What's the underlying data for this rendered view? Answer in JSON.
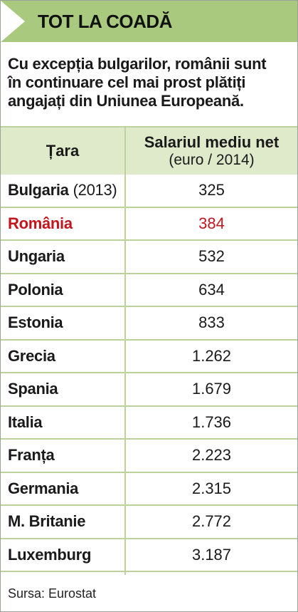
{
  "header": {
    "title": "TOT LA COADĂ"
  },
  "intro": {
    "lines": [
      "Cu excepția bulgarilor, românii sunt",
      "în continuare cel mai prost plătiți",
      "angajați din Uniunea Europeană."
    ]
  },
  "table": {
    "col1_header": "Țara",
    "col2_header_line1": "Salariul mediu net",
    "col2_header_line2": "(euro / 2014)",
    "rows": [
      {
        "country": "Bulgaria",
        "note": "(2013)",
        "value": "325"
      },
      {
        "country": "România",
        "note": "",
        "value": "384"
      },
      {
        "country": "Ungaria",
        "note": "",
        "value": "532"
      },
      {
        "country": "Polonia",
        "note": "",
        "value": "634"
      },
      {
        "country": "Estonia",
        "note": "",
        "value": "833"
      },
      {
        "country": "Grecia",
        "note": "",
        "value": "1.262"
      },
      {
        "country": "Spania",
        "note": "",
        "value": "1.679"
      },
      {
        "country": "Italia",
        "note": "",
        "value": "1.736"
      },
      {
        "country": "Franța",
        "note": "",
        "value": "2.223"
      },
      {
        "country": "Germania",
        "note": "",
        "value": "2.315"
      },
      {
        "country": "M. Britanie",
        "note": "",
        "value": "2.772"
      },
      {
        "country": "Luxemburg",
        "note": "",
        "value": "3.187"
      }
    ]
  },
  "source": "Sursa: Eurostat",
  "colors": {
    "header_bg": "#a8c97e",
    "table_header_bg": "#dfeacb",
    "row_border": "#bcd29a",
    "highlight": "#c3161c"
  }
}
